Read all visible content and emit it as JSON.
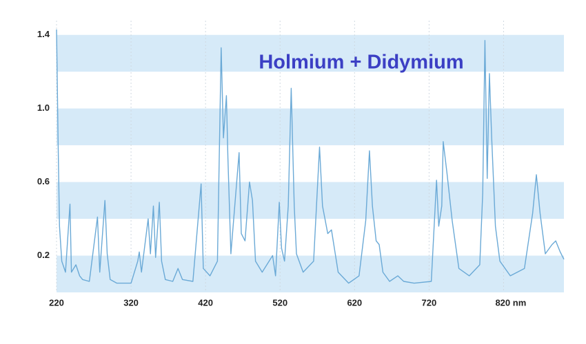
{
  "chart_data": {
    "type": "line",
    "title": "Holmium + Didymium",
    "title_color": "#3b3fc4",
    "color": "#6aa9d6",
    "band_color": "#d6eaf8",
    "grid": true,
    "xlim": [
      220,
      901
    ],
    "ylim": [
      0,
      1.5
    ],
    "xticks": [
      220,
      320,
      420,
      520,
      620,
      720,
      {
        "value": 820,
        "label": "820 nm"
      }
    ],
    "yticks": [
      0.2,
      0.6,
      {
        "value": 1,
        "label": "1.0"
      },
      1.4
    ],
    "x": [
      220,
      222,
      224,
      227,
      232,
      238,
      240,
      246,
      251,
      255,
      264,
      275,
      278,
      285,
      288,
      292,
      301,
      320,
      329,
      331,
      334,
      343,
      346,
      350,
      353,
      358,
      361,
      366,
      376,
      383,
      389,
      403,
      414,
      417,
      426,
      436,
      441,
      444,
      448,
      450,
      454,
      465,
      468,
      473,
      479,
      483,
      487,
      496,
      510,
      514,
      519,
      522,
      526,
      531,
      535,
      539,
      542,
      551,
      565,
      573,
      577,
      584,
      589,
      598,
      612,
      626,
      635,
      640,
      644,
      649,
      653,
      658,
      667,
      678,
      686,
      700,
      723,
      730,
      733,
      737,
      739,
      744,
      751,
      760,
      774,
      788,
      792,
      795,
      798,
      801,
      804,
      809,
      815,
      829,
      848,
      859,
      864,
      869,
      876,
      885,
      890,
      896,
      901
    ],
    "values": [
      1.43,
      0.84,
      0.36,
      0.17,
      0.11,
      0.48,
      0.11,
      0.15,
      0.09,
      0.07,
      0.06,
      0.41,
      0.11,
      0.5,
      0.21,
      0.07,
      0.05,
      0.05,
      0.17,
      0.22,
      0.11,
      0.4,
      0.21,
      0.47,
      0.19,
      0.49,
      0.17,
      0.07,
      0.06,
      0.13,
      0.07,
      0.06,
      0.59,
      0.13,
      0.09,
      0.17,
      1.33,
      0.84,
      1.07,
      0.73,
      0.21,
      0.76,
      0.32,
      0.28,
      0.6,
      0.5,
      0.17,
      0.11,
      0.2,
      0.09,
      0.49,
      0.24,
      0.17,
      0.47,
      1.11,
      0.47,
      0.21,
      0.11,
      0.17,
      0.79,
      0.47,
      0.32,
      0.34,
      0.11,
      0.05,
      0.09,
      0.39,
      0.77,
      0.47,
      0.28,
      0.26,
      0.11,
      0.06,
      0.09,
      0.06,
      0.05,
      0.06,
      0.61,
      0.36,
      0.47,
      0.82,
      0.65,
      0.39,
      0.13,
      0.09,
      0.15,
      0.54,
      1.37,
      0.62,
      1.19,
      0.84,
      0.36,
      0.17,
      0.09,
      0.13,
      0.43,
      0.64,
      0.43,
      0.21,
      0.26,
      0.28,
      0.22,
      0.18
    ]
  }
}
